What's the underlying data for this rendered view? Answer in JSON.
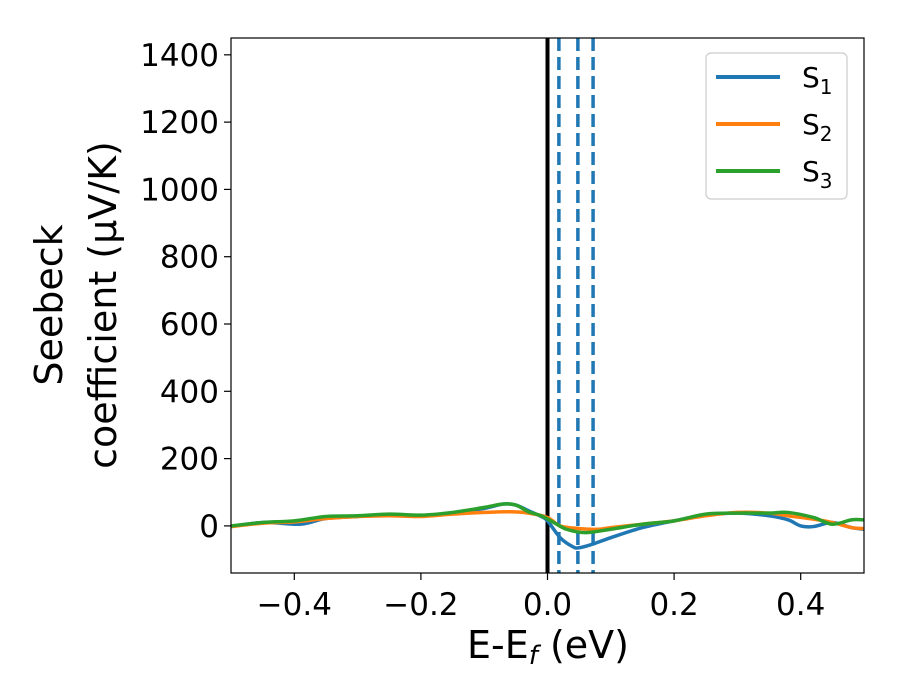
{
  "chart_data": {
    "type": "line",
    "xlabel": "E-E",
    "xlabel_sub": "f",
    "xlabel_unit": " (eV)",
    "ylabel_line1": "Seebeck",
    "ylabel_line2": "coefficient  (μV/K)",
    "xlim": [
      -0.5,
      0.5
    ],
    "ylim": [
      -140,
      1450
    ],
    "xticks": [
      {
        "value": -0.4,
        "label": "−0.4"
      },
      {
        "value": -0.2,
        "label": "−0.2"
      },
      {
        "value": 0.0,
        "label": "0.0"
      },
      {
        "value": 0.2,
        "label": "0.2"
      },
      {
        "value": 0.4,
        "label": "0.4"
      }
    ],
    "yticks": [
      {
        "value": 0,
        "label": "0"
      },
      {
        "value": 200,
        "label": "200"
      },
      {
        "value": 400,
        "label": "400"
      },
      {
        "value": 600,
        "label": "600"
      },
      {
        "value": 800,
        "label": "800"
      },
      {
        "value": 1000,
        "label": "1000"
      },
      {
        "value": 1200,
        "label": "1200"
      },
      {
        "value": 1400,
        "label": "1400"
      }
    ],
    "legend_position": "top-right",
    "vertical_lines": [
      {
        "x": 0.0,
        "style": "solid",
        "color": "#000000"
      },
      {
        "x": 0.018,
        "style": "dashed",
        "color": "#1f77b4"
      },
      {
        "x": 0.048,
        "style": "dashed",
        "color": "#1f77b4"
      },
      {
        "x": 0.072,
        "style": "dashed",
        "color": "#1f77b4"
      }
    ],
    "series": [
      {
        "name": "S",
        "sub": "1",
        "color": "#1f77b4",
        "x": [
          -0.5,
          -0.45,
          -0.4,
          -0.38,
          -0.35,
          -0.3,
          -0.25,
          -0.2,
          -0.15,
          -0.1,
          -0.07,
          -0.05,
          -0.03,
          -0.01,
          0.0,
          0.02,
          0.04,
          0.05,
          0.07,
          0.1,
          0.15,
          0.2,
          0.25,
          0.3,
          0.35,
          0.38,
          0.4,
          0.42,
          0.45,
          0.48,
          0.5
        ],
        "y": [
          -2,
          10,
          5,
          8,
          22,
          28,
          32,
          30,
          38,
          52,
          65,
          62,
          45,
          28,
          15,
          -35,
          -62,
          -65,
          -55,
          -35,
          -5,
          15,
          32,
          38,
          30,
          18,
          0,
          -2,
          10,
          -5,
          -10
        ]
      },
      {
        "name": "S",
        "sub": "2",
        "color": "#ff7f0e",
        "x": [
          -0.5,
          -0.45,
          -0.4,
          -0.35,
          -0.3,
          -0.25,
          -0.2,
          -0.15,
          -0.1,
          -0.06,
          -0.03,
          0.0,
          0.02,
          0.05,
          0.08,
          0.1,
          0.15,
          0.2,
          0.25,
          0.3,
          0.35,
          0.38,
          0.42,
          0.45,
          0.48,
          0.5
        ],
        "y": [
          -2,
          8,
          12,
          22,
          28,
          30,
          28,
          35,
          40,
          42,
          38,
          25,
          0,
          -8,
          -10,
          -5,
          5,
          15,
          30,
          40,
          38,
          30,
          20,
          10,
          -5,
          -8
        ]
      },
      {
        "name": "S",
        "sub": "3",
        "color": "#2ca02c",
        "x": [
          -0.5,
          -0.45,
          -0.4,
          -0.35,
          -0.3,
          -0.25,
          -0.2,
          -0.15,
          -0.1,
          -0.07,
          -0.05,
          -0.03,
          -0.01,
          0.01,
          0.03,
          0.06,
          0.1,
          0.15,
          0.2,
          0.25,
          0.3,
          0.35,
          0.38,
          0.42,
          0.45,
          0.48,
          0.5
        ],
        "y": [
          0,
          10,
          15,
          28,
          30,
          35,
          32,
          40,
          55,
          65,
          62,
          42,
          30,
          10,
          -10,
          -20,
          -10,
          5,
          15,
          35,
          38,
          38,
          40,
          25,
          5,
          18,
          18
        ]
      }
    ]
  }
}
